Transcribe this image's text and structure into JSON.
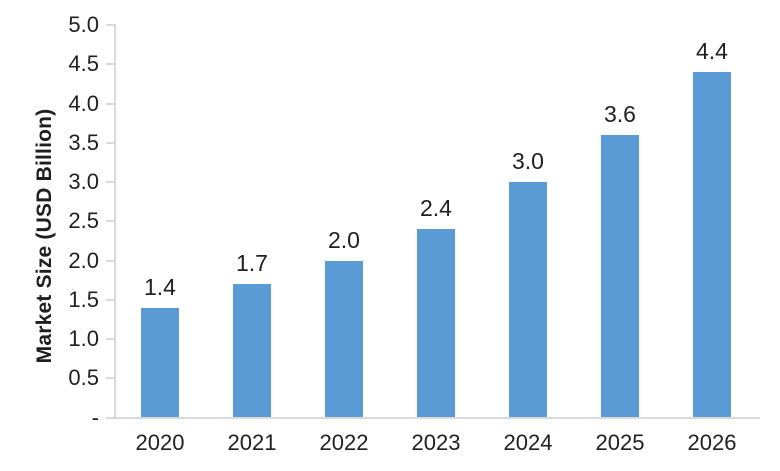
{
  "chart_data": {
    "type": "bar",
    "title": "",
    "categories": [
      "2020",
      "2021",
      "2022",
      "2023",
      "2024",
      "2025",
      "2026"
    ],
    "values": [
      1.4,
      1.7,
      2.0,
      2.4,
      3.0,
      3.6,
      4.4
    ],
    "data_labels": [
      "1.4",
      "1.7",
      "2.0",
      "2.4",
      "3.0",
      "3.6",
      "4.4"
    ],
    "xlabel": "",
    "ylabel": "Market Size (USD Billion)",
    "ylim": [
      0,
      5
    ],
    "ytick_step": 0.5,
    "ytick_labels_top_to_bottom": [
      "5.0",
      "4.5",
      "4.0",
      "3.5",
      "3.0",
      "2.5",
      "2.0",
      "1.5",
      "1.0",
      "0.5",
      "-"
    ],
    "grid": false,
    "legend": "none",
    "bar_color": "#5B9BD5",
    "axis_color": "#D9D9D9",
    "text_color": "#1F1F1F"
  }
}
